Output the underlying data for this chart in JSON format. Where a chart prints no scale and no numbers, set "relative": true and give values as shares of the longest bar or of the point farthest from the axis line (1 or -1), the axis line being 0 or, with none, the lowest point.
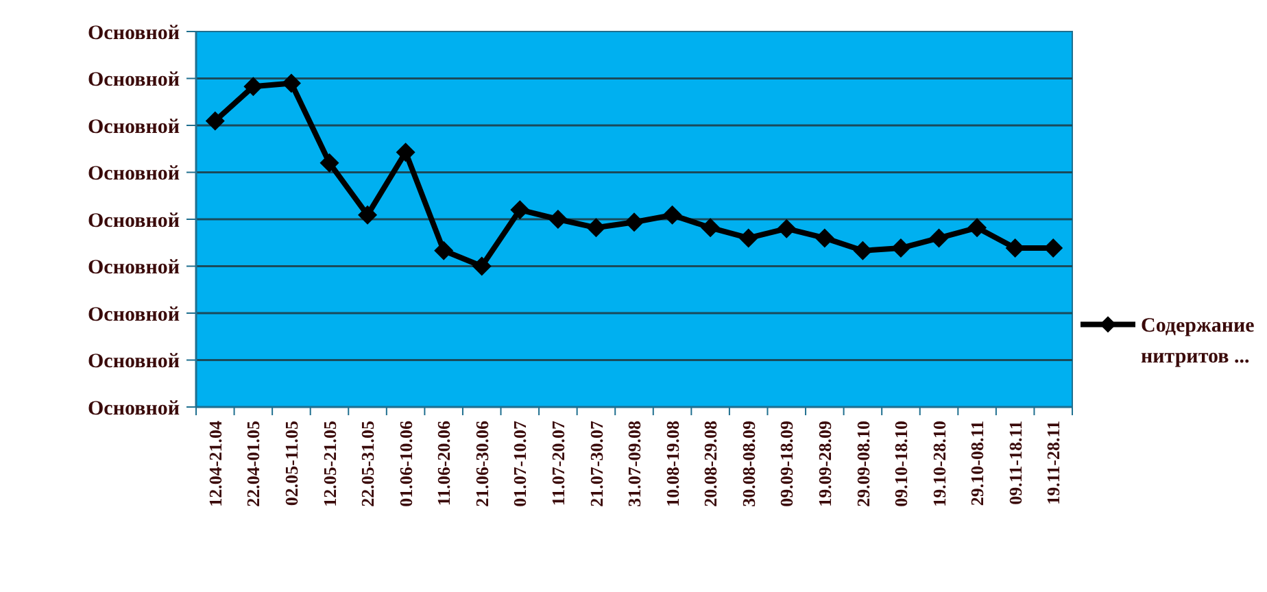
{
  "chart_data": {
    "type": "line",
    "relative": true,
    "categories": [
      "12.04-21.04",
      "22.04-01.05",
      "02.05-11.05",
      "12.05-21.05",
      "22.05-31.05",
      "01.06-10.06",
      "11.06-20.06",
      "21.06-30.06",
      "01.07-10.07",
      "11.07-20.07",
      "21.07-30.07",
      "31.07-09.08",
      "10.08-19.08",
      "20.08-29.08",
      "30.08-08.09",
      "09.09-18.09",
      "19.09-28.09",
      "29.09-08.10",
      "09.10-18.10",
      "19.10-28.10",
      "29.10-08.11",
      "09.11-18.11",
      "19.11-28.11"
    ],
    "series": [
      {
        "name": "Содержание нитритов ...",
        "color": "#000000",
        "values": [
          0.884,
          0.99,
          1,
          0.754,
          0.593,
          0.787,
          0.483,
          0.435,
          0.609,
          0.58,
          0.554,
          0.571,
          0.593,
          0.554,
          0.522,
          0.551,
          0.522,
          0.483,
          0.491,
          0.522,
          0.554,
          0.491,
          0.491
        ]
      }
    ],
    "annotations": [
      "Основной",
      "Основной",
      "Основной",
      "Основной",
      "Основной",
      "Основной",
      "Основной",
      "Основной",
      "Основной"
    ],
    "ref_lines": [
      {
        "axis": "y",
        "value": 0.145,
        "color": "#1a4a5a"
      },
      {
        "axis": "y",
        "value": 0.29,
        "color": "#1a4a5a"
      },
      {
        "axis": "y",
        "value": 0.435,
        "color": "#1a4a5a"
      },
      {
        "axis": "y",
        "value": 0.58,
        "color": "#1a4a5a"
      },
      {
        "axis": "y",
        "value": 0.725,
        "color": "#1a4a5a"
      },
      {
        "axis": "y",
        "value": 0.87,
        "color": "#1a4a5a"
      },
      {
        "axis": "y",
        "value": 1.015,
        "color": "#1a4a5a"
      }
    ],
    "legend": "right",
    "marker": "diamond",
    "line_style": "solid"
  }
}
